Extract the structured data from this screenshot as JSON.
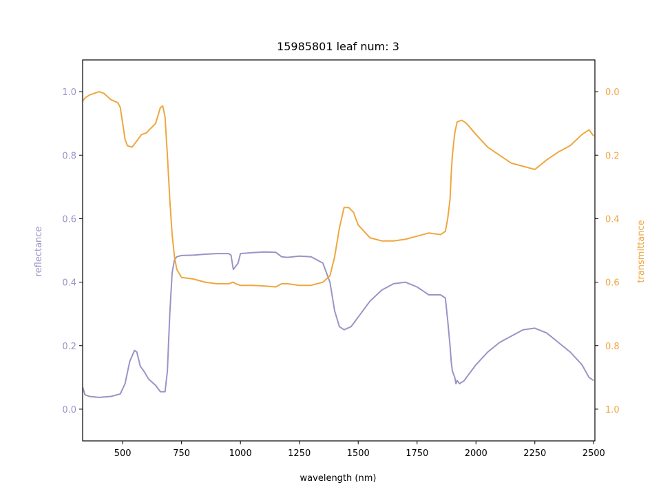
{
  "chart_data": {
    "type": "line",
    "title": "15985801 leaf num: 3",
    "xlabel": "wavelength (nm)",
    "ylabel": "reflectance",
    "y2label": "transmittance",
    "xlim": [
      330,
      2505
    ],
    "ylim": [
      -0.1,
      1.1
    ],
    "y2lim": [
      1.1,
      -0.1
    ],
    "y2_inverted": true,
    "xticks": [
      500,
      750,
      1000,
      1250,
      1500,
      1750,
      2000,
      2250,
      2500
    ],
    "xtick_labels": [
      "500",
      "750",
      "1000",
      "1250",
      "1500",
      "1750",
      "2000",
      "2250",
      "2500"
    ],
    "yticks": [
      0.0,
      0.2,
      0.4,
      0.6,
      0.8,
      1.0
    ],
    "ytick_labels": [
      "0.0",
      "0.2",
      "0.4",
      "0.6",
      "0.8",
      "1.0"
    ],
    "y2ticks": [
      0.0,
      0.2,
      0.4,
      0.6,
      0.8,
      1.0
    ],
    "y2tick_labels": [
      "0.0",
      "0.2",
      "0.4",
      "0.6",
      "0.8",
      "1.0"
    ],
    "grid": false,
    "colors": {
      "reflectance": "#9b93c6",
      "transmittance": "#efa63f",
      "axes": "#000000"
    },
    "series": [
      {
        "axis": "left",
        "color": "#9b93c6",
        "x": [
          330,
          340,
          360,
          400,
          450,
          490,
          510,
          530,
          550,
          560,
          575,
          590,
          610,
          640,
          660,
          680,
          690,
          700,
          710,
          720,
          730,
          750,
          800,
          850,
          900,
          950,
          960,
          970,
          990,
          1000,
          1050,
          1100,
          1150,
          1175,
          1200,
          1250,
          1300,
          1350,
          1380,
          1400,
          1420,
          1440,
          1470,
          1500,
          1550,
          1600,
          1650,
          1700,
          1750,
          1780,
          1800,
          1850,
          1870,
          1880,
          1890,
          1895,
          1900,
          1910,
          1915,
          1920,
          1930,
          1950,
          1970,
          2000,
          2050,
          2100,
          2150,
          2200,
          2250,
          2300,
          2350,
          2400,
          2450,
          2480,
          2500
        ],
        "y": [
          0.07,
          0.045,
          0.04,
          0.037,
          0.04,
          0.048,
          0.08,
          0.15,
          0.185,
          0.18,
          0.135,
          0.12,
          0.095,
          0.075,
          0.055,
          0.055,
          0.12,
          0.3,
          0.43,
          0.47,
          0.48,
          0.484,
          0.485,
          0.488,
          0.49,
          0.49,
          0.485,
          0.44,
          0.46,
          0.49,
          0.493,
          0.495,
          0.494,
          0.48,
          0.478,
          0.482,
          0.48,
          0.46,
          0.4,
          0.31,
          0.26,
          0.25,
          0.26,
          0.29,
          0.34,
          0.375,
          0.395,
          0.4,
          0.385,
          0.37,
          0.36,
          0.36,
          0.35,
          0.28,
          0.2,
          0.15,
          0.12,
          0.1,
          0.08,
          0.09,
          0.08,
          0.09,
          0.11,
          0.14,
          0.18,
          0.21,
          0.23,
          0.25,
          0.255,
          0.24,
          0.21,
          0.18,
          0.14,
          0.1,
          0.09
        ]
      },
      {
        "axis": "right",
        "color": "#efa63f",
        "x": [
          330,
          340,
          360,
          380,
          400,
          420,
          450,
          480,
          490,
          500,
          510,
          520,
          540,
          560,
          580,
          600,
          640,
          660,
          670,
          680,
          690,
          700,
          710,
          720,
          730,
          750,
          800,
          850,
          900,
          950,
          970,
          980,
          1000,
          1050,
          1100,
          1150,
          1175,
          1200,
          1250,
          1300,
          1350,
          1380,
          1400,
          1420,
          1440,
          1460,
          1480,
          1500,
          1550,
          1600,
          1650,
          1700,
          1750,
          1800,
          1850,
          1870,
          1880,
          1890,
          1895,
          1900,
          1910,
          1920,
          1940,
          1960,
          2000,
          2050,
          2100,
          2150,
          2200,
          2250,
          2300,
          2350,
          2400,
          2450,
          2480,
          2500
        ],
        "y": [
          0.03,
          0.02,
          0.01,
          0.005,
          0.0,
          0.005,
          0.025,
          0.035,
          0.05,
          0.1,
          0.15,
          0.17,
          0.175,
          0.155,
          0.135,
          0.13,
          0.1,
          0.05,
          0.045,
          0.08,
          0.2,
          0.34,
          0.45,
          0.52,
          0.56,
          0.585,
          0.59,
          0.6,
          0.605,
          0.605,
          0.6,
          0.605,
          0.61,
          0.61,
          0.612,
          0.615,
          0.605,
          0.605,
          0.61,
          0.61,
          0.6,
          0.58,
          0.52,
          0.43,
          0.365,
          0.365,
          0.38,
          0.42,
          0.46,
          0.47,
          0.47,
          0.465,
          0.455,
          0.445,
          0.45,
          0.44,
          0.4,
          0.34,
          0.26,
          0.2,
          0.13,
          0.095,
          0.09,
          0.1,
          0.135,
          0.175,
          0.2,
          0.225,
          0.235,
          0.245,
          0.215,
          0.19,
          0.17,
          0.135,
          0.12,
          0.14
        ]
      }
    ]
  }
}
